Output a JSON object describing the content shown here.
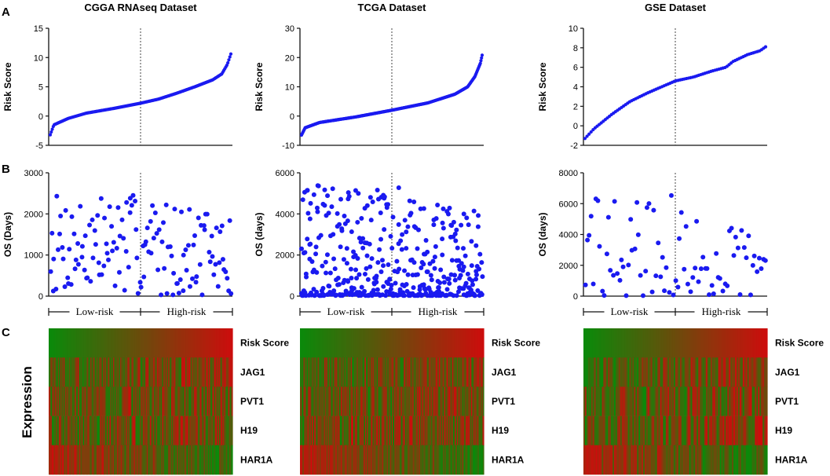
{
  "figure": {
    "panel_labels": [
      "A",
      "B",
      "C"
    ],
    "expression_label": "Expression",
    "colors": {
      "point": "#1a1af0",
      "axis": "#111111",
      "green": "#0a8a0a",
      "red": "#cc0d0d"
    }
  },
  "chart_data": [
    {
      "type": "scatter",
      "panel": "A",
      "name": "cgga-risk",
      "title": "CGGA RNAseq Dataset",
      "xlabel": "",
      "ylabel": "Risk Score",
      "ylim": [
        -5,
        15
      ],
      "yticks": [
        -5,
        0,
        5,
        10,
        15
      ],
      "divider_fraction": 0.5,
      "n": 180,
      "curve": [
        [
          0,
          -3.2
        ],
        [
          0.02,
          -1.5
        ],
        [
          0.1,
          -0.4
        ],
        [
          0.2,
          0.5
        ],
        [
          0.35,
          1.3
        ],
        [
          0.5,
          2.2
        ],
        [
          0.6,
          2.9
        ],
        [
          0.7,
          3.9
        ],
        [
          0.8,
          5.0
        ],
        [
          0.9,
          6.2
        ],
        [
          0.95,
          7.2
        ],
        [
          0.98,
          8.8
        ],
        [
          1.0,
          10.6
        ]
      ]
    },
    {
      "type": "scatter",
      "panel": "A",
      "name": "tcga-risk",
      "title": "TCGA Dataset",
      "xlabel": "",
      "ylabel": "Risk Score",
      "ylim": [
        -10,
        30
      ],
      "yticks": [
        -10,
        0,
        10,
        20,
        30
      ],
      "divider_fraction": 0.5,
      "n": 300,
      "curve": [
        [
          0,
          -6.5
        ],
        [
          0.02,
          -4
        ],
        [
          0.1,
          -2.2
        ],
        [
          0.3,
          -0.3
        ],
        [
          0.5,
          2.0
        ],
        [
          0.7,
          4.5
        ],
        [
          0.85,
          7.5
        ],
        [
          0.92,
          10
        ],
        [
          0.96,
          13.5
        ],
        [
          0.99,
          18
        ],
        [
          1.0,
          20.8
        ]
      ]
    },
    {
      "type": "scatter",
      "panel": "A",
      "name": "gse-risk",
      "title": "GSE Dataset",
      "xlabel": "",
      "ylabel": "Risk Score",
      "ylim": [
        -2,
        10
      ],
      "yticks": [
        -2,
        0,
        2,
        4,
        6,
        8,
        10
      ],
      "divider_fraction": 0.5,
      "n": 90,
      "curve": [
        [
          0,
          -1.3
        ],
        [
          0.05,
          -0.3
        ],
        [
          0.15,
          1.2
        ],
        [
          0.25,
          2.5
        ],
        [
          0.35,
          3.4
        ],
        [
          0.5,
          4.6
        ],
        [
          0.6,
          5.0
        ],
        [
          0.7,
          5.6
        ],
        [
          0.78,
          6.0
        ],
        [
          0.82,
          6.6
        ],
        [
          0.9,
          7.3
        ],
        [
          0.97,
          7.7
        ],
        [
          1.0,
          8.1
        ]
      ]
    },
    {
      "type": "scatter",
      "panel": "B",
      "name": "cgga-os",
      "title": "",
      "xlabel": "",
      "ylabel": "OS (Days)",
      "ylim": [
        0,
        3000
      ],
      "yticks": [
        0,
        1000,
        2000,
        3000
      ],
      "divider_fraction": 0.5,
      "low_label": "Low-risk",
      "high_label": "High-risk",
      "n": 140,
      "seed": 7,
      "max_low": 2500,
      "max_high": 2500,
      "skew": 1.0
    },
    {
      "type": "scatter",
      "panel": "B",
      "name": "tcga-os",
      "title": "",
      "xlabel": "",
      "ylabel": "OS (days)",
      "ylim": [
        0,
        6000
      ],
      "yticks": [
        0,
        2000,
        4000,
        6000
      ],
      "divider_fraction": 0.5,
      "low_label": "Low-risk",
      "high_label": "High-risk",
      "n": 420,
      "seed": 13,
      "max_low": 5400,
      "max_high": 5400,
      "skew": 2.6
    },
    {
      "type": "scatter",
      "panel": "B",
      "name": "gse-os",
      "title": "",
      "xlabel": "",
      "ylabel": "OS (days)",
      "ylim": [
        0,
        8000
      ],
      "yticks": [
        0,
        2000,
        4000,
        6000,
        8000
      ],
      "divider_fraction": 0.5,
      "low_label": "Low-risk",
      "high_label": "High-risk",
      "n": 85,
      "seed": 29,
      "max_low": 6800,
      "max_high": 5800,
      "skew": 1.6
    },
    {
      "type": "heatmap",
      "panel": "C",
      "name": "cgga-heatmap",
      "rows": [
        "Risk Score",
        "JAG1",
        "PVT1",
        "H19",
        "HAR1A"
      ],
      "row_trend": [
        1,
        0.35,
        0.15,
        0.2,
        -0.85
      ],
      "n_columns": 180,
      "seed": 3
    },
    {
      "type": "heatmap",
      "panel": "C",
      "name": "tcga-heatmap",
      "rows": [
        "Risk Score",
        "JAG1",
        "PVT1",
        "H19",
        "HAR1A"
      ],
      "row_trend": [
        1,
        0.3,
        0.25,
        0.05,
        -0.9
      ],
      "n_columns": 220,
      "seed": 11
    },
    {
      "type": "heatmap",
      "panel": "C",
      "name": "gse-heatmap",
      "rows": [
        "Risk Score",
        "JAG1",
        "PVT1",
        "H19",
        "HAR1A"
      ],
      "row_trend": [
        1,
        0.45,
        0.2,
        0.3,
        -0.8
      ],
      "n_columns": 120,
      "seed": 21
    }
  ]
}
